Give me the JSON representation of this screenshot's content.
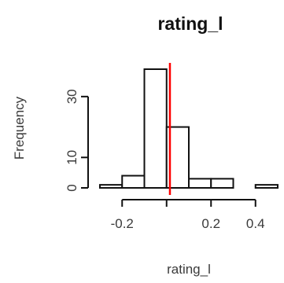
{
  "chart_data": {
    "type": "bar",
    "title": "rating_l",
    "xlabel": "rating_l",
    "ylabel": "Frequency",
    "bin_edges": [
      -0.3,
      -0.2,
      -0.1,
      0.0,
      0.1,
      0.2,
      0.3,
      0.4,
      0.5
    ],
    "counts": [
      1,
      4,
      39,
      20,
      3,
      3,
      0,
      1
    ],
    "vline_x": 0.015,
    "vline_color": "#ff0000",
    "xlim": [
      -0.3,
      0.5
    ],
    "ylim": [
      0,
      39
    ],
    "x_ticks": [
      {
        "value": -0.2,
        "label": "-0.2"
      },
      {
        "value": 0.0,
        "label": ""
      },
      {
        "value": 0.2,
        "label": "0.2"
      },
      {
        "value": 0.4,
        "label": "0.4"
      }
    ],
    "y_ticks": [
      {
        "value": 0,
        "label": "0"
      },
      {
        "value": 10,
        "label": "10"
      },
      {
        "value": 30,
        "label": "30"
      }
    ],
    "grid": false,
    "legend": "none"
  }
}
